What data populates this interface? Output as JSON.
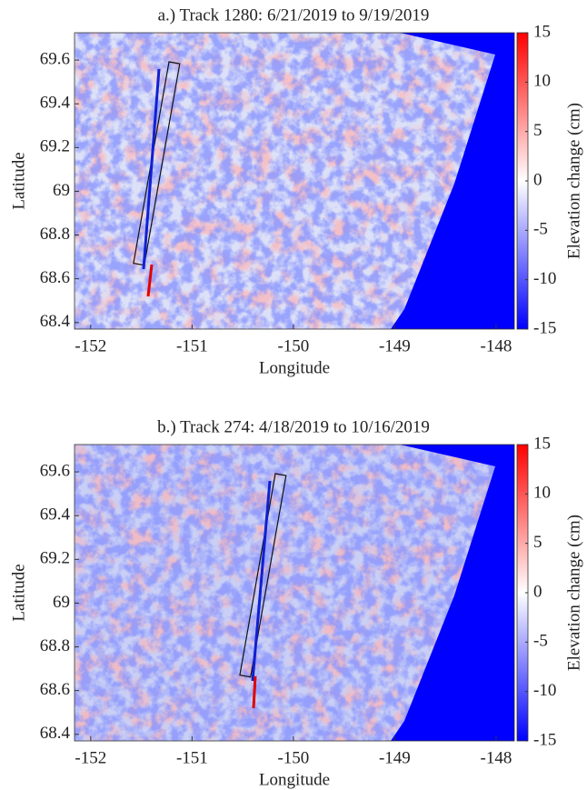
{
  "chart_data": [
    {
      "type": "raster",
      "title": "a.) Track 1280: 6/21/2019 to 9/19/2019",
      "xlabel": "Longitude",
      "ylabel": "Latitude",
      "xlim": [
        -152.16,
        -147.82
      ],
      "xticks": [
        -152,
        -151,
        -150,
        -149,
        -148
      ],
      "ylim": [
        68.37,
        69.725
      ],
      "yticks": [
        68.4,
        68.6,
        68.8,
        69,
        69.2,
        69.4,
        69.6
      ],
      "colorbar_label": "Elevation change (cm)",
      "clim": [
        -15,
        15
      ],
      "cticks": [
        -15,
        -10,
        -5,
        0,
        5,
        10,
        15
      ],
      "colormap": [
        "#0000ff",
        "#ffffff",
        "#ff0000"
      ]
    },
    {
      "type": "raster",
      "title": "b.) Track 274: 4/18/2019 to 10/16/2019",
      "xlabel": "Longitude",
      "ylabel": "Latitude",
      "xlim": [
        -152.16,
        -147.82
      ],
      "xticks": [
        -152,
        -151,
        -150,
        -149,
        -148
      ],
      "ylim": [
        68.37,
        69.725
      ],
      "yticks": [
        68.4,
        68.6,
        68.8,
        69,
        69.2,
        69.4,
        69.6
      ],
      "colorbar_label": "Elevation change (cm)",
      "clim": [
        -15,
        15
      ],
      "cticks": [
        -15,
        -10,
        -5,
        0,
        5,
        10,
        15
      ],
      "colormap": [
        "#0000ff",
        "#ffffff",
        "#ff0000"
      ]
    }
  ]
}
